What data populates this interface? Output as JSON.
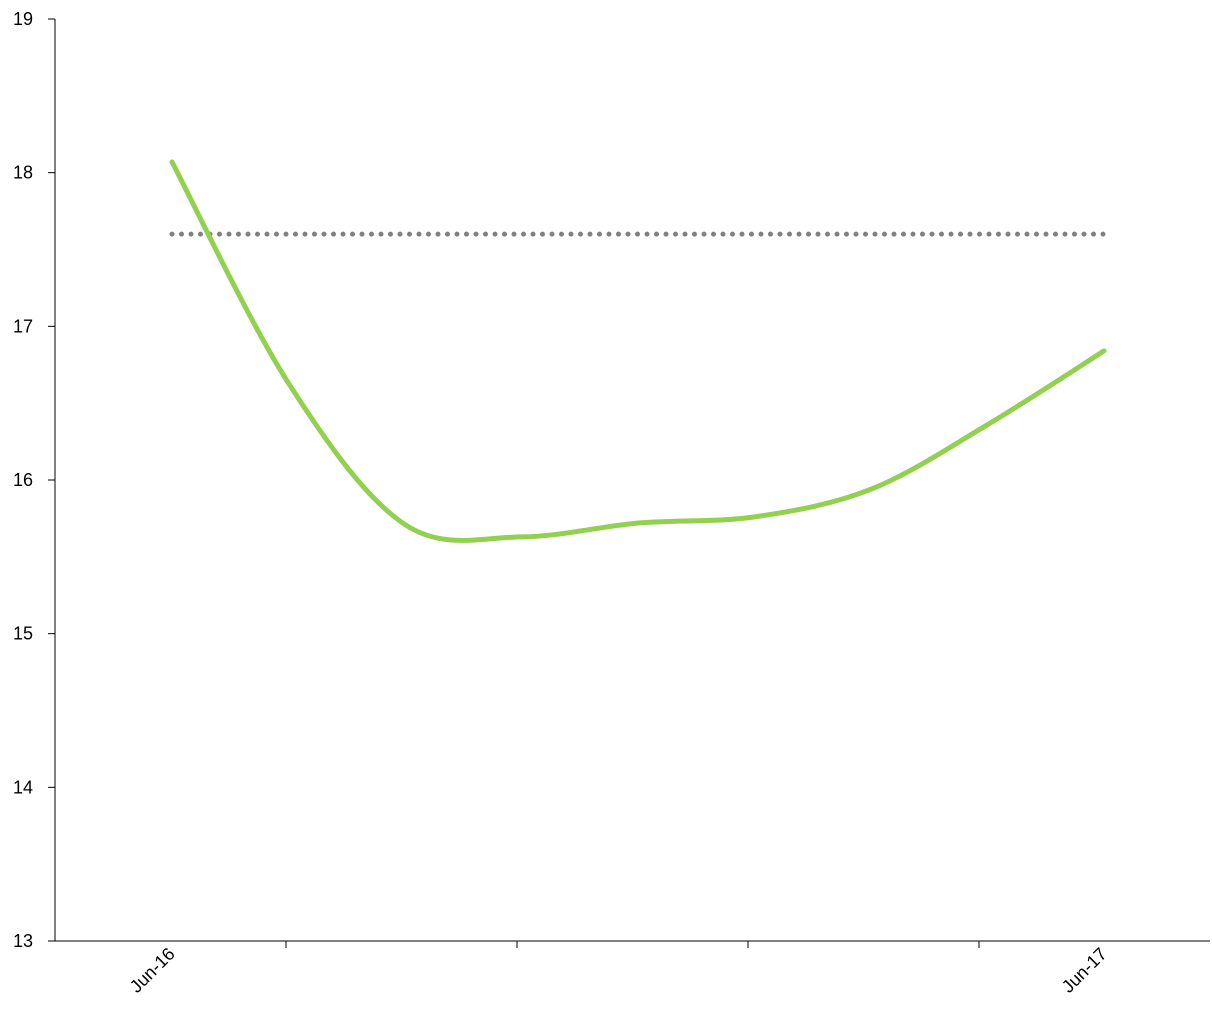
{
  "chart_data": {
    "type": "line",
    "title": "",
    "xlabel": "",
    "ylabel": "",
    "ylim": [
      13,
      19
    ],
    "y_ticks": [
      13,
      14,
      15,
      16,
      17,
      18,
      19
    ],
    "x_tick_labels": [
      "Jun-16",
      "",
      "",
      "",
      "Jun-17"
    ],
    "grid": false,
    "legend": "none",
    "series": [
      {
        "style": "solid",
        "color": "#92d050",
        "x": [
          0,
          0.5,
          1,
          1.5,
          2,
          2.5,
          3,
          3.5,
          4
        ],
        "values": [
          18.07,
          16.63,
          15.71,
          15.63,
          15.72,
          15.76,
          15.94,
          16.36,
          16.84
        ]
      },
      {
        "style": "dotted",
        "color": "#808080",
        "x": [
          0,
          4
        ],
        "values": [
          17.6,
          17.6
        ]
      }
    ]
  }
}
